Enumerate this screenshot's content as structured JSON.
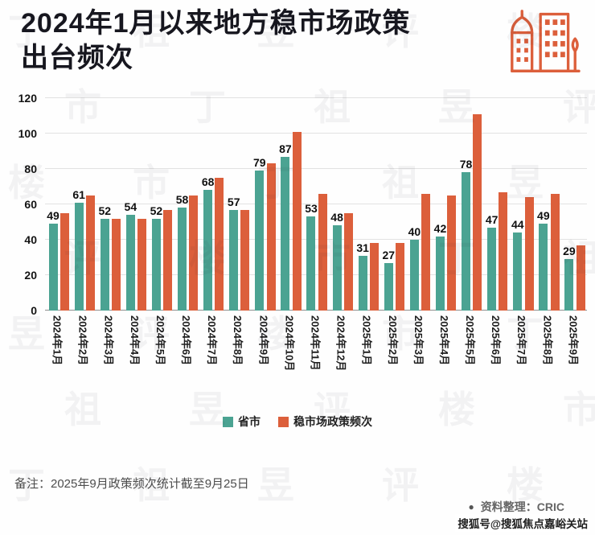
{
  "header": {
    "title_line1": "2024年1月以来地方稳市场政策",
    "title_line2": "出台频次"
  },
  "chart_data": {
    "type": "bar",
    "title": "2024年1月以来地方稳市场政策出台频次",
    "categories": [
      "2024年1月",
      "2024年2月",
      "2024年3月",
      "2024年4月",
      "2024年5月",
      "2024年6月",
      "2024年7月",
      "2024年8月",
      "2024年9月",
      "2024年10月",
      "2024年11月",
      "2024年12月",
      "2025年1月",
      "2025年2月",
      "2025年3月",
      "2025年4月",
      "2025年5月",
      "2025年6月",
      "2025年7月",
      "2025年8月",
      "2025年9月"
    ],
    "series": [
      {
        "name": "省市",
        "color": "#4BA392",
        "labels_shown": true,
        "values": [
          49,
          61,
          52,
          54,
          52,
          58,
          68,
          57,
          79,
          87,
          53,
          48,
          31,
          27,
          40,
          42,
          78,
          47,
          44,
          49,
          29
        ]
      },
      {
        "name": "稳市场政策频次",
        "color": "#DC5F3B",
        "labels_shown": false,
        "values": [
          55,
          65,
          52,
          52,
          57,
          65,
          75,
          57,
          83,
          101,
          66,
          55,
          38,
          38,
          66,
          65,
          111,
          67,
          64,
          66,
          37
        ]
      }
    ],
    "xlabel": "",
    "ylabel": "",
    "ylim": [
      0,
      120
    ],
    "ytick_interval": 20,
    "grid": true,
    "legend_position": "bottom"
  },
  "footer": {
    "note": "备注：2025年9月政策频次统计截至9月25日",
    "source_bullet": "●",
    "source": "资料整理：CRIC"
  },
  "watermarks": {
    "brand_characters": [
      "丁",
      "祖",
      "昱",
      "评",
      "楼",
      "市"
    ],
    "sohu": "搜狐号@搜狐焦点嘉峪关站"
  },
  "icon_color": "#DC5F3B"
}
